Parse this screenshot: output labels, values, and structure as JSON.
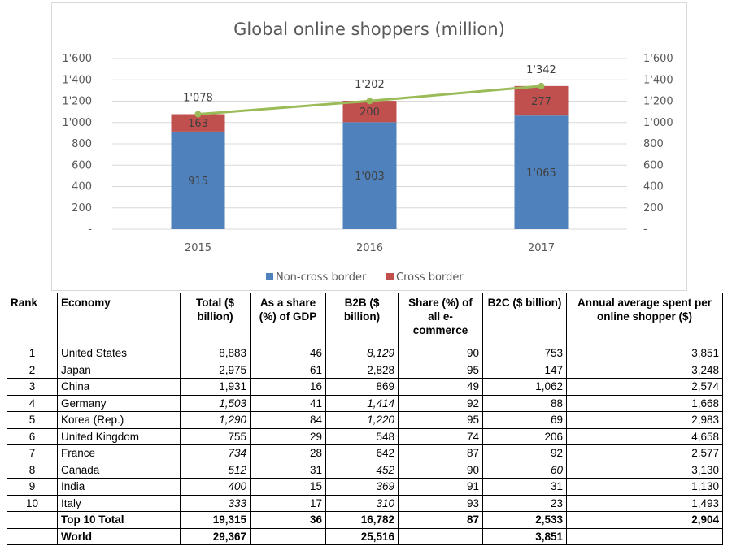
{
  "chart_data": {
    "type": "bar",
    "stacked": true,
    "title": "Global online shoppers (million)",
    "categories": [
      "2015",
      "2016",
      "2017"
    ],
    "series": [
      {
        "name": "Non-cross border",
        "values": [
          915,
          1003,
          1065
        ],
        "labels": [
          "915",
          "1'003",
          "1'065"
        ],
        "color": "#4f81bd"
      },
      {
        "name": "Cross border",
        "values": [
          163,
          200,
          277
        ],
        "labels": [
          "163",
          "200",
          "277"
        ],
        "color": "#c0504d"
      }
    ],
    "totals": {
      "values": [
        1078,
        1202,
        1342
      ],
      "labels": [
        "1'078",
        "1'202",
        "1'342"
      ],
      "line_color": "#9bbb59"
    },
    "ylim": [
      0,
      1600
    ],
    "y_ticks": [
      "-",
      "200",
      "400",
      "600",
      "800",
      "1'000",
      "1'200",
      "1'400",
      "1'600"
    ],
    "secondary_axis": true,
    "grid": true,
    "legend_position": "bottom"
  },
  "table": {
    "headers": {
      "rank": "Rank",
      "economy": "Economy",
      "total": "Total ($ billion)",
      "share_gdp": "As a share (%) of GDP",
      "b2b": "B2B ($ billion)",
      "share_ecom": "Share (%) of all e-commerce",
      "b2c": "B2C ($ billion)",
      "annual": "Annual average spent per online shopper ($)"
    },
    "rows": [
      {
        "rank": "1",
        "economy": "United States",
        "total": "8,883",
        "share_gdp": "46",
        "b2b": "8,129",
        "share_ecom": "90",
        "b2c": "753",
        "annual": "3,851"
      },
      {
        "rank": "2",
        "economy": "Japan",
        "total": "2,975",
        "share_gdp": "61",
        "b2b": "2,828",
        "share_ecom": "95",
        "b2c": "147",
        "annual": "3,248"
      },
      {
        "rank": "3",
        "economy": "China",
        "total": "1,931",
        "share_gdp": "16",
        "b2b": "869",
        "share_ecom": "49",
        "b2c": "1,062",
        "annual": "2,574"
      },
      {
        "rank": "4",
        "economy": "Germany",
        "total": "1,503",
        "share_gdp": "41",
        "b2b": "1,414",
        "share_ecom": "92",
        "b2c": "88",
        "annual": "1,668"
      },
      {
        "rank": "5",
        "economy": "Korea (Rep.)",
        "total": "1,290",
        "share_gdp": "84",
        "b2b": "1,220",
        "share_ecom": "95",
        "b2c": "69",
        "annual": "2,983"
      },
      {
        "rank": "6",
        "economy": "United Kingdom",
        "total": "755",
        "share_gdp": "29",
        "b2b": "548",
        "share_ecom": "74",
        "b2c": "206",
        "annual": "4,658"
      },
      {
        "rank": "7",
        "economy": "France",
        "total": "734",
        "share_gdp": "28",
        "b2b": "642",
        "share_ecom": "87",
        "b2c": "92",
        "annual": "2,577"
      },
      {
        "rank": "8",
        "economy": "Canada",
        "total": "512",
        "share_gdp": "31",
        "b2b": "452",
        "share_ecom": "90",
        "b2c": "60",
        "annual": "3,130"
      },
      {
        "rank": "9",
        "economy": "India",
        "total": "400",
        "share_gdp": "15",
        "b2b": "369",
        "share_ecom": "91",
        "b2c": "31",
        "annual": "1,130"
      },
      {
        "rank": "10",
        "economy": "Italy",
        "total": "333",
        "share_gdp": "17",
        "b2b": "310",
        "share_ecom": "93",
        "b2c": "23",
        "annual": "1,493"
      }
    ],
    "top10": {
      "economy": "Top 10 Total",
      "total": "19,315",
      "share_gdp": "36",
      "b2b": "16,782",
      "share_ecom": "87",
      "b2c": "2,533",
      "annual": "2,904"
    },
    "world": {
      "economy": "World",
      "total": "29,367",
      "share_gdp": "",
      "b2b": "25,516",
      "share_ecom": "",
      "b2c": "3,851",
      "annual": ""
    },
    "italic_cells": [
      {
        "row": 0,
        "col": "b2b"
      },
      {
        "row": 3,
        "col": "total"
      },
      {
        "row": 3,
        "col": "b2b"
      },
      {
        "row": 4,
        "col": "total"
      },
      {
        "row": 4,
        "col": "b2b"
      },
      {
        "row": 6,
        "col": "total"
      },
      {
        "row": 7,
        "col": "total"
      },
      {
        "row": 7,
        "col": "b2b"
      },
      {
        "row": 7,
        "col": "b2c"
      },
      {
        "row": 8,
        "col": "total"
      },
      {
        "row": 8,
        "col": "b2b"
      },
      {
        "row": 9,
        "col": "total"
      },
      {
        "row": 9,
        "col": "b2b"
      }
    ]
  }
}
